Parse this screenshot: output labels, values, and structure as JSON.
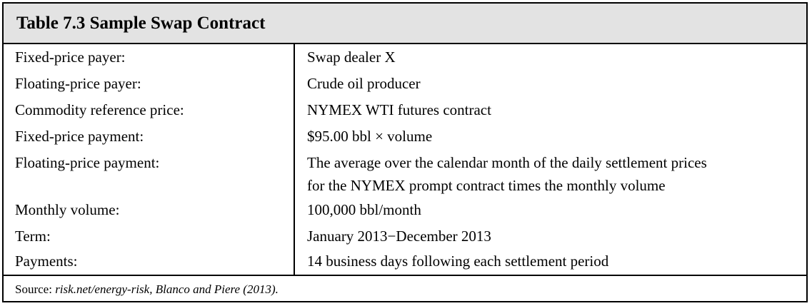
{
  "table": {
    "title": "Table 7.3  Sample Swap Contract",
    "rows": [
      {
        "label": "Fixed-price payer:",
        "value": [
          "Swap dealer X"
        ]
      },
      {
        "label": "Floating-price payer:",
        "value": [
          "Crude oil producer"
        ]
      },
      {
        "label": "Commodity reference price:",
        "value": [
          "NYMEX WTI futures contract"
        ]
      },
      {
        "label": "Fixed-price payment:",
        "value": [
          "$95.00 bbl × volume"
        ]
      },
      {
        "label": "Floating-price payment:",
        "value": [
          "The average over the calendar month of the daily settlement prices",
          "for the NYMEX prompt contract times the monthly volume"
        ]
      },
      {
        "label": "Monthly volume:",
        "value": [
          "100,000 bbl/month"
        ]
      },
      {
        "label": "Term:",
        "value": [
          "January 2013−December 2013"
        ]
      },
      {
        "label": "Payments:",
        "value": [
          "14 business days following each settlement period"
        ]
      }
    ],
    "source": {
      "prefix": "Source: ",
      "citation": "risk.net/energy-risk, Blanco and Piere (2013)."
    },
    "colors": {
      "title_background": "#e3e3e3",
      "border": "#000000",
      "text": "#000000"
    }
  }
}
